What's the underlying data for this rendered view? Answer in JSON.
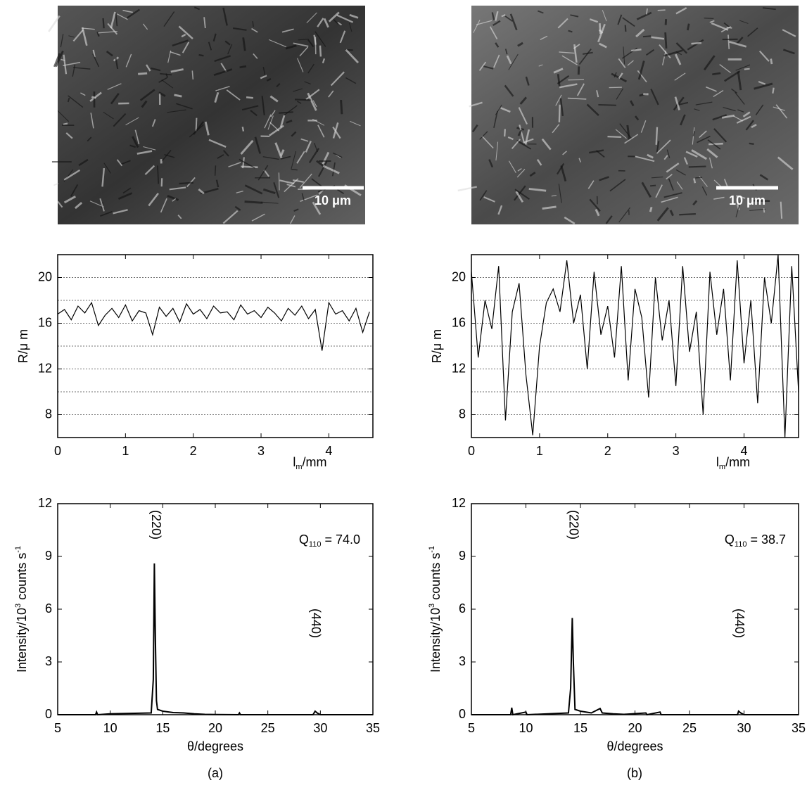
{
  "images": [
    {
      "scale_bar": "10 μm"
    },
    {
      "scale_bar": "10 μm"
    }
  ],
  "panel_labels": [
    "(a)",
    "(b)"
  ],
  "chart_data": [
    {
      "type": "line",
      "y_label": "R/μ m",
      "x_label": [
        "l",
        "m",
        "/mm"
      ],
      "x": [
        0,
        0.1,
        0.2,
        0.3,
        0.4,
        0.5,
        0.6,
        0.7,
        0.8,
        0.9,
        1,
        1.1,
        1.2,
        1.3,
        1.4,
        1.5,
        1.6,
        1.7,
        1.8,
        1.9,
        2,
        2.1,
        2.2,
        2.3,
        2.4,
        2.5,
        2.6,
        2.7,
        2.8,
        2.9,
        3,
        3.1,
        3.2,
        3.3,
        3.4,
        3.5,
        3.6,
        3.7,
        3.8,
        3.9,
        4,
        4.1,
        4.2,
        4.3,
        4.4,
        4.5,
        4.6
      ],
      "series": [
        {
          "color": "#000000",
          "values": [
            16.8,
            17.2,
            16.3,
            17.5,
            16.9,
            17.8,
            15.8,
            16.7,
            17.3,
            16.5,
            17.6,
            16.2,
            17.1,
            16.9,
            15.0,
            17.4,
            16.6,
            17.3,
            16.1,
            17.7,
            16.8,
            17.2,
            16.4,
            17.5,
            16.9,
            17.0,
            16.3,
            17.6,
            16.8,
            17.1,
            16.5,
            17.4,
            16.9,
            16.2,
            17.3,
            16.7,
            17.5,
            16.4,
            17.2,
            13.6,
            17.8,
            16.8,
            17.1,
            16.2,
            17.3,
            15.2,
            17.0
          ]
        }
      ],
      "xlim": [
        0,
        4.65
      ],
      "xticks": [
        0,
        1,
        2,
        3,
        4
      ],
      "ylim": [
        6,
        22
      ],
      "yticks": [
        8,
        12,
        16,
        20
      ],
      "minor_yticks": [
        10,
        14,
        18
      ],
      "grid": true
    },
    {
      "type": "line",
      "y_label": "R/μ m",
      "x_label": [
        "l",
        "m",
        "/mm"
      ],
      "x": [
        0,
        0.1,
        0.2,
        0.3,
        0.4,
        0.5,
        0.6,
        0.7,
        0.8,
        0.9,
        1,
        1.1,
        1.2,
        1.3,
        1.4,
        1.5,
        1.6,
        1.7,
        1.8,
        1.9,
        2,
        2.1,
        2.2,
        2.3,
        2.4,
        2.5,
        2.6,
        2.7,
        2.8,
        2.9,
        3,
        3.1,
        3.2,
        3.3,
        3.4,
        3.5,
        3.6,
        3.7,
        3.8,
        3.9,
        4,
        4.1,
        4.2,
        4.3,
        4.4,
        4.5,
        4.6,
        4.7,
        4.8
      ],
      "series": [
        {
          "color": "#000000",
          "values": [
            20.5,
            13,
            18,
            15.5,
            21,
            7.5,
            17,
            19.5,
            11.5,
            6.2,
            14,
            17.8,
            19,
            17,
            21.5,
            16,
            18.5,
            12,
            20.5,
            15,
            17.5,
            13,
            21,
            11,
            19,
            16.5,
            9.5,
            20,
            14.5,
            18,
            10.5,
            21,
            13.5,
            17,
            8,
            20.5,
            15,
            19,
            11,
            21.5,
            12.5,
            18,
            9,
            20,
            16,
            22,
            6,
            21,
            10
          ]
        }
      ],
      "xlim": [
        0,
        4.8
      ],
      "xticks": [
        0,
        1,
        2,
        3,
        4
      ],
      "ylim": [
        6,
        22
      ],
      "yticks": [
        8,
        12,
        16,
        20
      ],
      "minor_yticks": [
        10,
        14,
        18
      ],
      "grid": true
    },
    {
      "type": "line",
      "y_label": [
        "Intensity/10",
        "3",
        " counts s",
        "-1"
      ],
      "x_label": "θ/degrees",
      "annotation": [
        "Q",
        "110",
        " = 74.0"
      ],
      "peak_labels": [
        {
          "text": "(220)",
          "x": 14.3
        },
        {
          "text": "(440)",
          "x": 29.5
        }
      ],
      "x": [
        5,
        8.6,
        8.7,
        8.8,
        10,
        13.9,
        14.1,
        14.2,
        14.3,
        14.4,
        14.5,
        15,
        16,
        17,
        18,
        19,
        20,
        22.2,
        22.3,
        22.4,
        29.3,
        29.5,
        29.7,
        30,
        35
      ],
      "series": [
        {
          "color": "#000000",
          "values": [
            0,
            0,
            0.15,
            0,
            0.05,
            0.1,
            2,
            8.6,
            4.2,
            0.8,
            0.3,
            0.2,
            0.12,
            0.1,
            0.05,
            0.02,
            0.01,
            0,
            0.1,
            0,
            0,
            0.2,
            0.1,
            0,
            0
          ]
        }
      ],
      "xlim": [
        5,
        35
      ],
      "xticks": [
        5,
        10,
        15,
        20,
        25,
        30,
        35
      ],
      "ylim": [
        0,
        12
      ],
      "yticks": [
        0,
        3,
        6,
        9,
        12
      ],
      "grid": false
    },
    {
      "type": "line",
      "y_label": [
        "Intensity/10",
        "3",
        " counts s",
        "-1"
      ],
      "x_label": "θ/degrees",
      "annotation": [
        "Q",
        "110",
        " = 38.7"
      ],
      "peak_labels": [
        {
          "text": "(220)",
          "x": 14.3
        },
        {
          "text": "(440)",
          "x": 29.5
        }
      ],
      "x": [
        5,
        8.6,
        8.7,
        8.8,
        10,
        10.1,
        13.9,
        14.1,
        14.25,
        14.35,
        14.5,
        15,
        16,
        16.8,
        17,
        18,
        19,
        21,
        21.1,
        22.3,
        22.4,
        29.4,
        29.5,
        29.7,
        30,
        35
      ],
      "series": [
        {
          "color": "#000000",
          "values": [
            0,
            0,
            0.4,
            0,
            0.15,
            0,
            0.1,
            1.5,
            5.5,
            3.0,
            0.3,
            0.2,
            0.1,
            0.35,
            0.1,
            0.05,
            0.02,
            0.1,
            0,
            0.15,
            0,
            0,
            0.2,
            0.1,
            0,
            0
          ]
        }
      ],
      "xlim": [
        5,
        35
      ],
      "xticks": [
        5,
        10,
        15,
        20,
        25,
        30,
        35
      ],
      "ylim": [
        0,
        12
      ],
      "yticks": [
        0,
        3,
        6,
        9,
        12
      ],
      "grid": false
    }
  ]
}
